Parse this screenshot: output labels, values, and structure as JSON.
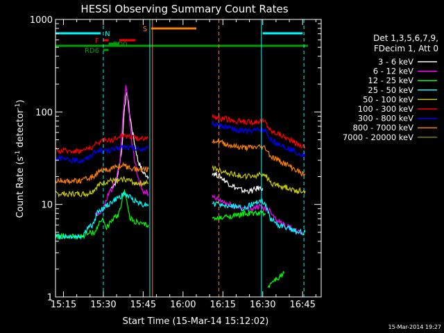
{
  "chart_data": {
    "type": "line",
    "title": "HESSI Observing Summary Count Rates",
    "xlabel": "Start Time (15-Mar-14 15:12:02)",
    "ylabel_main": "Count Rate (s",
    "ylabel_sup1": "-1",
    "ylabel_mid": " detector",
    "ylabel_sup2": "-1",
    "ylabel_end": ")",
    "x_range_min": [
      12,
      52
    ],
    "y_range": [
      1,
      1000
    ],
    "y_scale": "log",
    "x_ticks": [
      {
        "label": "15:15",
        "t": 15
      },
      {
        "label": "15:30",
        "t": 30
      },
      {
        "label": "15:45",
        "t": 45
      },
      {
        "label": "16:00",
        "t": 60
      },
      {
        "label": "16:15",
        "t": 75
      },
      {
        "label": "16:30",
        "t": 90
      },
      {
        "label": "16:45",
        "t": 105
      }
    ],
    "y_ticks": [
      {
        "label": "1",
        "v": 1
      },
      {
        "label": "10",
        "v": 10
      },
      {
        "label": "100",
        "v": 100
      },
      {
        "label": "1000",
        "v": 1000
      }
    ],
    "legend": {
      "placement": "right",
      "header": [
        "Det 1,3,5,6,7,9,",
        "FDecim 1, Att 0"
      ],
      "entries": [
        {
          "label": "3 - 6 keV",
          "color": "#ffffff"
        },
        {
          "label": "6 - 12 keV",
          "color": "#ff00ff"
        },
        {
          "label": "12 - 25 keV",
          "color": "#00ff00"
        },
        {
          "label": "25 - 50 keV",
          "color": "#00ffff"
        },
        {
          "label": "50 - 100 keV",
          "color": "#cccc00"
        },
        {
          "label": "100 - 300 keV",
          "color": "#ff0000"
        },
        {
          "label": "300 - 800 keV",
          "color": "#0000ff"
        },
        {
          "label": "800 - 7000 keV",
          "color": "#ff8000"
        },
        {
          "label": "7000 - 20000 keV",
          "color": "#808000"
        }
      ]
    },
    "flags": [
      {
        "label": "N",
        "color": "#00ffff",
        "t0": 12,
        "t1": 29
      },
      {
        "label": "N",
        "color": "#00ffff",
        "t0": 90,
        "t1": 105
      },
      {
        "label": "S",
        "color": "#ff8000",
        "t0": 48,
        "t1": 65
      },
      {
        "label": "F",
        "color": "#ff0000",
        "t0": 30,
        "t1": 32
      },
      {
        "label": "F",
        "color": "#ff0000",
        "t0": 36,
        "t1": 42
      },
      {
        "label": "RD0",
        "color": "#00a000",
        "t0": 32,
        "t1": 36
      },
      {
        "label": "RD6",
        "color": "#00a000",
        "t0": 30,
        "t1": 32
      },
      {
        "label": "",
        "color": "#00a000",
        "t0": 12,
        "t1": 107
      }
    ],
    "vlines": [
      {
        "t": 30,
        "color": "#00ffff",
        "style": "dashed"
      },
      {
        "t": 47.5,
        "color": "#00ffff",
        "style": "solid"
      },
      {
        "t": 48.5,
        "color": "#ff8000",
        "style": "solid"
      },
      {
        "t": 73.5,
        "color": "#ff8000",
        "style": "dashed"
      },
      {
        "t": 89.5,
        "color": "#00ffff",
        "style": "solid"
      },
      {
        "t": 105.5,
        "color": "#00ffff",
        "style": "dashed"
      }
    ],
    "series": [
      {
        "name": "3 - 6 keV",
        "color": "#ffffff",
        "segments": [
          [
            [
              33,
              15
            ],
            [
              35,
              18
            ],
            [
              37,
              40
            ],
            [
              38,
              120
            ],
            [
              39,
              160
            ],
            [
              40,
              90
            ],
            [
              41,
              60
            ],
            [
              43,
              30
            ],
            [
              45,
              22
            ],
            [
              47,
              20
            ]
          ],
          [
            [
              71,
              22
            ],
            [
              74,
              20
            ],
            [
              77,
              17
            ],
            [
              80,
              15
            ],
            [
              83,
              14
            ],
            [
              86,
              14
            ],
            [
              88,
              15
            ],
            [
              90,
              15
            ]
          ]
        ]
      },
      {
        "name": "6 - 12 keV",
        "color": "#ff00ff",
        "segments": [
          [
            [
              27,
              8
            ],
            [
              29,
              8
            ],
            [
              30,
              9
            ],
            [
              32,
              13
            ],
            [
              34,
              16
            ],
            [
              36,
              25
            ],
            [
              37,
              60
            ],
            [
              38,
              150
            ],
            [
              38.5,
              190
            ],
            [
              39,
              150
            ],
            [
              40,
              80
            ],
            [
              41,
              40
            ],
            [
              43,
              20
            ],
            [
              45,
              14
            ],
            [
              47,
              13
            ]
          ],
          [
            [
              71,
              12
            ],
            [
              74,
              11
            ],
            [
              77,
              10
            ],
            [
              80,
              9.5
            ],
            [
              83,
              9
            ],
            [
              86,
              9
            ],
            [
              89,
              9.5
            ],
            [
              91,
              9
            ],
            [
              93,
              8.5
            ],
            [
              95,
              7
            ],
            [
              98,
              6
            ],
            [
              101,
              5.5
            ],
            [
              103,
              5
            ],
            [
              105,
              5
            ]
          ]
        ]
      },
      {
        "name": "12 - 25 keV",
        "color": "#00ff00",
        "segments": [
          [
            [
              12,
              4.5
            ],
            [
              18,
              4.5
            ],
            [
              22,
              4.5
            ],
            [
              24,
              4.8
            ],
            [
              26,
              5
            ],
            [
              27,
              5
            ],
            [
              28,
              6
            ],
            [
              30,
              7
            ],
            [
              31,
              5.5
            ],
            [
              32,
              6
            ],
            [
              34,
              7
            ],
            [
              36,
              8
            ],
            [
              37,
              11
            ],
            [
              38,
              15
            ],
            [
              39,
              10
            ],
            [
              40,
              7
            ],
            [
              42,
              6.5
            ],
            [
              45,
              6
            ],
            [
              47,
              6
            ]
          ],
          [
            [
              71,
              7
            ],
            [
              74,
              7
            ],
            [
              77,
              7.5
            ],
            [
              80,
              7.5
            ],
            [
              83,
              8
            ],
            [
              86,
              8
            ],
            [
              89,
              8
            ],
            [
              91,
              8
            ]
          ],
          [
            [
              92,
              1.3
            ],
            [
              94,
              1.5
            ],
            [
              96,
              1.6
            ],
            [
              98,
              1.8
            ]
          ]
        ]
      },
      {
        "name": "25 - 50 keV",
        "color": "#00ffff",
        "segments": [
          [
            [
              12,
              4.5
            ],
            [
              18,
              4.5
            ],
            [
              22,
              4.5
            ],
            [
              24,
              5.5
            ],
            [
              26,
              6
            ],
            [
              27,
              7
            ],
            [
              28,
              8.5
            ],
            [
              30,
              9
            ],
            [
              32,
              10
            ],
            [
              34,
              11
            ],
            [
              36,
              12
            ],
            [
              38,
              13
            ],
            [
              40,
              12
            ],
            [
              42,
              11
            ],
            [
              45,
              10
            ],
            [
              47,
              10
            ]
          ],
          [
            [
              71,
              10
            ],
            [
              74,
              10
            ],
            [
              77,
              9.5
            ],
            [
              80,
              9.5
            ],
            [
              83,
              9
            ],
            [
              86,
              10
            ],
            [
              89,
              11
            ],
            [
              91,
              10
            ],
            [
              93,
              7
            ],
            [
              96,
              6
            ],
            [
              100,
              5.5
            ],
            [
              103,
              5
            ],
            [
              106,
              5
            ]
          ]
        ]
      },
      {
        "name": "50 - 100 keV",
        "color": "#cccc00",
        "segments": [
          [
            [
              12,
              13
            ],
            [
              18,
              13
            ],
            [
              22,
              13
            ],
            [
              24,
              13
            ],
            [
              26,
              14
            ],
            [
              28,
              16
            ],
            [
              30,
              17
            ],
            [
              32,
              18
            ],
            [
              34,
              18
            ],
            [
              36,
              18
            ],
            [
              38,
              19
            ],
            [
              40,
              18
            ],
            [
              42,
              17
            ],
            [
              45,
              17
            ],
            [
              47,
              17
            ]
          ],
          [
            [
              71,
              25
            ],
            [
              74,
              23
            ],
            [
              77,
              22
            ],
            [
              80,
              21
            ],
            [
              83,
              20
            ],
            [
              86,
              20
            ],
            [
              89,
              21
            ],
            [
              91,
              21
            ],
            [
              93,
              17
            ],
            [
              96,
              16
            ],
            [
              100,
              15
            ],
            [
              103,
              14
            ],
            [
              106,
              14
            ]
          ]
        ]
      },
      {
        "name": "100 - 300 keV",
        "color": "#ff0000",
        "segments": [
          [
            [
              12,
              38
            ],
            [
              18,
              38
            ],
            [
              22,
              38
            ],
            [
              24,
              40
            ],
            [
              26,
              42
            ],
            [
              28,
              46
            ],
            [
              30,
              50
            ],
            [
              32,
              50
            ],
            [
              34,
              50
            ],
            [
              36,
              55
            ],
            [
              38,
              56
            ],
            [
              40,
              55
            ],
            [
              42,
              52
            ],
            [
              45,
              52
            ],
            [
              47,
              52
            ]
          ],
          [
            [
              71,
              90
            ],
            [
              74,
              85
            ],
            [
              77,
              83
            ],
            [
              80,
              80
            ],
            [
              83,
              78
            ],
            [
              86,
              78
            ],
            [
              89,
              80
            ],
            [
              91,
              78
            ],
            [
              93,
              62
            ],
            [
              96,
              58
            ],
            [
              100,
              50
            ],
            [
              103,
              45
            ],
            [
              106,
              42
            ]
          ]
        ]
      },
      {
        "name": "300 - 800 keV",
        "color": "#0000ff",
        "segments": [
          [
            [
              12,
              32
            ],
            [
              18,
              30
            ],
            [
              22,
              30
            ],
            [
              24,
              32
            ],
            [
              26,
              35
            ],
            [
              28,
              38
            ],
            [
              30,
              38
            ],
            [
              32,
              38
            ],
            [
              34,
              39
            ],
            [
              36,
              41
            ],
            [
              38,
              42
            ],
            [
              40,
              41
            ],
            [
              42,
              40
            ],
            [
              45,
              40
            ],
            [
              47,
              40
            ]
          ],
          [
            [
              71,
              75
            ],
            [
              74,
              70
            ],
            [
              77,
              67
            ],
            [
              80,
              64
            ],
            [
              83,
              62
            ],
            [
              86,
              62
            ],
            [
              89,
              64
            ],
            [
              91,
              62
            ],
            [
              93,
              50
            ],
            [
              96,
              45
            ],
            [
              100,
              40
            ],
            [
              103,
              36
            ],
            [
              106,
              34
            ]
          ]
        ]
      },
      {
        "name": "800 - 7000 keV",
        "color": "#ff8000",
        "segments": [
          [
            [
              12,
              18
            ],
            [
              18,
              18
            ],
            [
              22,
              18
            ],
            [
              24,
              19
            ],
            [
              26,
              20
            ],
            [
              28,
              22
            ],
            [
              30,
              23
            ],
            [
              32,
              24
            ],
            [
              34,
              25
            ],
            [
              36,
              26
            ],
            [
              38,
              26
            ],
            [
              40,
              25
            ],
            [
              42,
              24
            ],
            [
              45,
              24
            ],
            [
              47,
              24
            ]
          ],
          [
            [
              71,
              50
            ],
            [
              74,
              47
            ],
            [
              77,
              44
            ],
            [
              80,
              42
            ],
            [
              83,
              41
            ],
            [
              86,
              41
            ],
            [
              89,
              42
            ],
            [
              91,
              41
            ],
            [
              93,
              33
            ],
            [
              96,
              30
            ],
            [
              100,
              26
            ],
            [
              103,
              23
            ],
            [
              106,
              21
            ]
          ]
        ]
      }
    ],
    "footer_date": "15-Mar-2014 19:27"
  }
}
